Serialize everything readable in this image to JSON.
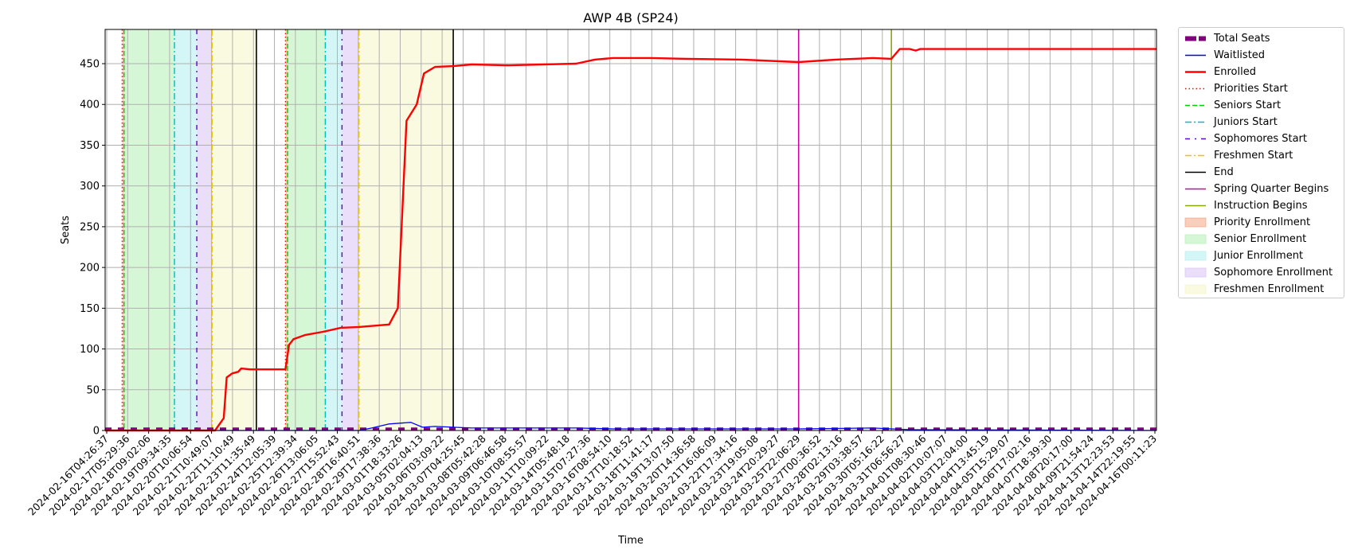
{
  "chart_data": {
    "type": "line",
    "title": "AWP 4B (SP24)",
    "xlabel": "Time",
    "ylabel": "Seats",
    "ylim": [
      0,
      492
    ],
    "yticks": [
      0,
      50,
      100,
      150,
      200,
      250,
      300,
      350,
      400,
      450
    ],
    "x_start": "2024-02-16T04:26:37",
    "x_end": "2024-04-16T14:00:00",
    "xticks": [
      "2024-02-16T04:26:37",
      "2024-02-17T05:29:36",
      "2024-02-18T09:02:06",
      "2024-02-19T09:34:35",
      "2024-02-20T10:06:54",
      "2024-02-21T10:49:07",
      "2024-02-22T11:10:49",
      "2024-02-23T11:35:49",
      "2024-02-24T12:05:39",
      "2024-02-25T12:39:34",
      "2024-02-26T13:06:05",
      "2024-02-27T15:52:43",
      "2024-02-28T16:40:51",
      "2024-02-29T17:38:36",
      "2024-03-01T18:33:26",
      "2024-03-05T02:04:13",
      "2024-03-06T03:09:22",
      "2024-03-07T04:25:45",
      "2024-03-08T05:42:28",
      "2024-03-09T06:46:58",
      "2024-03-10T08:55:57",
      "2024-03-11T10:09:22",
      "2024-03-14T05:48:18",
      "2024-03-15T07:27:36",
      "2024-03-16T08:54:10",
      "2024-03-17T10:18:52",
      "2024-03-18T11:41:17",
      "2024-03-19T13:07:50",
      "2024-03-20T14:36:58",
      "2024-03-21T16:06:09",
      "2024-03-22T17:34:16",
      "2024-03-23T19:05:08",
      "2024-03-24T20:29:27",
      "2024-03-25T22:06:29",
      "2024-03-27T00:36:52",
      "2024-03-28T02:13:16",
      "2024-03-29T03:38:57",
      "2024-03-30T05:16:22",
      "2024-03-31T06:56:27",
      "2024-04-01T08:30:46",
      "2024-04-02T10:07:07",
      "2024-04-03T12:04:00",
      "2024-04-04T13:45:19",
      "2024-04-05T15:29:07",
      "2024-04-06T17:02:16",
      "2024-04-07T18:39:30",
      "2024-04-08T20:17:00",
      "2024-04-09T21:54:24",
      "2024-04-13T12:23:53",
      "2024-04-14T22:19:55",
      "2024-04-16T00:11:23"
    ],
    "series": [
      {
        "name": "Total Seats",
        "color": "#800080",
        "style": "dashed-thick",
        "points": [
          [
            "2024-02-16T04:26:37",
            2
          ],
          [
            "2024-04-16T14:00:00",
            2
          ]
        ]
      },
      {
        "name": "Waitlisted",
        "color": "#0000ff",
        "style": "solid",
        "points": [
          [
            "2024-02-16T04:26:37",
            0
          ],
          [
            "2024-03-01T18:33:26",
            0
          ],
          [
            "2024-03-02T12:00:00",
            3
          ],
          [
            "2024-03-03T12:00:00",
            8
          ],
          [
            "2024-03-04T18:00:00",
            10
          ],
          [
            "2024-03-05T10:00:00",
            4
          ],
          [
            "2024-03-06T03:09:22",
            5
          ],
          [
            "2024-03-07T04:25:45",
            4
          ],
          [
            "2024-03-08T05:42:28",
            3
          ],
          [
            "2024-03-10T08:55:57",
            3
          ],
          [
            "2024-03-14T05:48:18",
            3
          ],
          [
            "2024-03-16T08:54:10",
            2
          ],
          [
            "2024-03-20T14:36:58",
            2
          ],
          [
            "2024-03-27T00:36:52",
            2
          ],
          [
            "2024-03-31T06:56:27",
            3
          ],
          [
            "2024-04-02T10:07:07",
            1
          ],
          [
            "2024-04-16T14:00:00",
            0
          ]
        ]
      },
      {
        "name": "Enrolled",
        "color": "#ff0000",
        "style": "solid-thick",
        "points": [
          [
            "2024-02-16T04:26:37",
            0
          ],
          [
            "2024-02-22T12:00:00",
            0
          ],
          [
            "2024-02-23T00:00:00",
            15
          ],
          [
            "2024-02-23T04:00:00",
            65
          ],
          [
            "2024-02-23T11:35:49",
            70
          ],
          [
            "2024-02-23T20:00:00",
            72
          ],
          [
            "2024-02-24T00:00:00",
            76
          ],
          [
            "2024-02-24T12:05:39",
            75
          ],
          [
            "2024-02-26T13:06:05",
            75
          ],
          [
            "2024-02-26T18:00:00",
            105
          ],
          [
            "2024-02-27T00:00:00",
            112
          ],
          [
            "2024-02-27T15:52:43",
            117
          ],
          [
            "2024-02-28T16:40:51",
            121
          ],
          [
            "2024-02-29T17:38:36",
            126
          ],
          [
            "2024-03-01T18:33:26",
            127
          ],
          [
            "2024-03-03T12:00:00",
            130
          ],
          [
            "2024-03-04T00:00:00",
            150
          ],
          [
            "2024-03-04T12:00:00",
            380
          ],
          [
            "2024-03-05T02:04:13",
            400
          ],
          [
            "2024-03-05T12:00:00",
            438
          ],
          [
            "2024-03-06T03:09:22",
            446
          ],
          [
            "2024-03-07T04:25:45",
            447
          ],
          [
            "2024-03-08T05:42:28",
            449
          ],
          [
            "2024-03-10T08:55:57",
            448
          ],
          [
            "2024-03-14T05:48:18",
            450
          ],
          [
            "2024-03-15T07:27:36",
            455
          ],
          [
            "2024-03-16T08:54:10",
            457
          ],
          [
            "2024-03-18T11:41:17",
            457
          ],
          [
            "2024-03-20T14:36:58",
            456
          ],
          [
            "2024-03-23T19:05:08",
            455
          ],
          [
            "2024-03-25T22:06:29",
            453
          ],
          [
            "2024-03-27T00:36:52",
            452
          ],
          [
            "2024-03-29T03:38:57",
            455
          ],
          [
            "2024-03-31T06:56:27",
            457
          ],
          [
            "2024-04-01T08:30:46",
            456
          ],
          [
            "2024-04-01T20:00:00",
            468
          ],
          [
            "2024-04-02T10:07:07",
            468
          ],
          [
            "2024-04-02T18:00:00",
            466
          ],
          [
            "2024-04-03T00:00:00",
            468
          ],
          [
            "2024-04-16T14:00:00",
            468
          ]
        ]
      }
    ],
    "vlines": [
      {
        "name": "Priorities Start",
        "color": "#ff0000",
        "style": "dotted",
        "x": [
          "2024-02-17T04:00:00",
          "2024-02-26T13:06:05"
        ]
      },
      {
        "name": "Seniors Start",
        "color": "#00cc00",
        "style": "dashed",
        "x": [
          "2024-02-17T06:30:00",
          "2024-02-26T16:00:00"
        ]
      },
      {
        "name": "Juniors Start",
        "color": "#00bfbf",
        "style": "dashdot",
        "x": [
          "2024-02-20T04:00:00",
          "2024-02-28T20:00:00"
        ]
      },
      {
        "name": "Sophomores Start",
        "color": "#6600cc",
        "style": "dashdot-dense",
        "x": [
          "2024-02-21T10:49:07",
          "2024-02-29T19:00:00"
        ]
      },
      {
        "name": "Freshmen Start",
        "color": "#e6c800",
        "style": "dashdot",
        "x": [
          "2024-02-22T08:00:00",
          "2024-03-01T18:33:26"
        ]
      },
      {
        "name": "End",
        "color": "#000000",
        "style": "solid",
        "x": [
          "2024-02-24T21:00:00",
          "2024-03-07T04:25:45"
        ]
      },
      {
        "name": "Spring Quarter Begins",
        "color": "#cc00aa",
        "style": "solid",
        "x": [
          "2024-03-27T00:36:52"
        ]
      },
      {
        "name": "Instruction Begins",
        "color": "#88aa00",
        "style": "solid",
        "x": [
          "2024-04-01T08:30:46"
        ]
      }
    ],
    "spans": [
      {
        "name": "Priority Enrollment",
        "color": "#f4a582",
        "ranges": [
          [
            "2024-02-17T04:00:00",
            "2024-02-17T06:30:00"
          ],
          [
            "2024-02-26T13:06:05",
            "2024-02-26T16:00:00"
          ]
        ]
      },
      {
        "name": "Senior Enrollment",
        "color": "#b3f0b3",
        "ranges": [
          [
            "2024-02-17T06:30:00",
            "2024-02-20T04:00:00"
          ],
          [
            "2024-02-26T16:00:00",
            "2024-02-28T20:00:00"
          ]
        ]
      },
      {
        "name": "Junior Enrollment",
        "color": "#b3eef0",
        "ranges": [
          [
            "2024-02-20T04:00:00",
            "2024-02-21T10:49:07"
          ],
          [
            "2024-02-28T20:00:00",
            "2024-02-29T19:00:00"
          ]
        ]
      },
      {
        "name": "Sophomore Enrollment",
        "color": "#d9c3f5",
        "ranges": [
          [
            "2024-02-21T10:49:07",
            "2024-02-22T08:00:00"
          ],
          [
            "2024-02-29T19:00:00",
            "2024-03-01T18:33:26"
          ]
        ]
      },
      {
        "name": "Freshmen Enrollment",
        "color": "#f5f5c8",
        "ranges": [
          [
            "2024-02-22T08:00:00",
            "2024-02-24T21:00:00"
          ],
          [
            "2024-03-01T18:33:26",
            "2024-03-07T04:25:45"
          ]
        ]
      }
    ],
    "legend": {
      "placement": "outside-top-right",
      "entries": [
        "Total Seats",
        "Waitlisted",
        "Enrolled",
        "Priorities Start",
        "Seniors Start",
        "Juniors Start",
        "Sophomores Start",
        "Freshmen Start",
        "End",
        "Spring Quarter Begins",
        "Instruction Begins",
        "Priority Enrollment",
        "Senior Enrollment",
        "Junior Enrollment",
        "Sophomore Enrollment",
        "Freshmen Enrollment"
      ]
    },
    "grid": true
  }
}
